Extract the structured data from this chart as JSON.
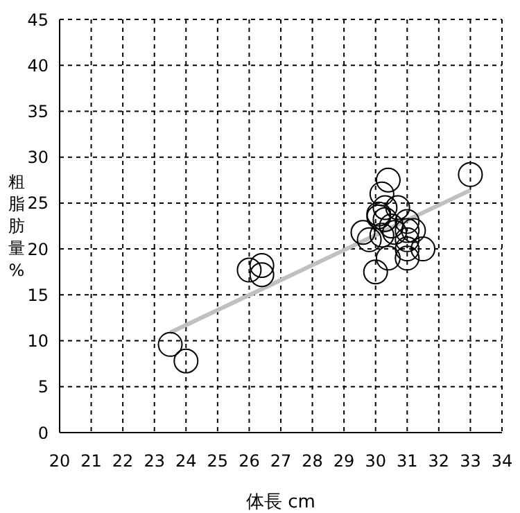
{
  "chart_data": {
    "type": "scatter",
    "xlabel": "体長 cm",
    "ylabel": "粗脂肪量%",
    "xlim": [
      20,
      34
    ],
    "xticks": [
      20,
      21,
      22,
      23,
      24,
      25,
      26,
      27,
      28,
      29,
      30,
      31,
      32,
      33,
      34
    ],
    "ylim": [
      0,
      45
    ],
    "yticks": [
      0,
      5,
      10,
      15,
      20,
      25,
      30,
      35,
      40,
      45
    ],
    "grid": true,
    "marker": "circle",
    "series": [
      {
        "color": "#000000",
        "x": [
          23.5,
          24,
          26,
          26.4,
          26.4,
          30,
          30.4,
          30.4,
          30.2,
          30.3,
          30.1,
          30.3,
          30.7,
          29.6,
          29.8,
          30.2,
          30.6,
          31,
          31,
          31.2,
          31.5,
          31,
          31,
          30.1,
          33,
          30.5,
          31
        ],
        "values": [
          9.6,
          7.8,
          17.7,
          18.2,
          17.2,
          17.5,
          19,
          27.5,
          26,
          24.5,
          23.5,
          23.2,
          24.5,
          21.8,
          21,
          21.5,
          21.8,
          23,
          22,
          22,
          20,
          20,
          19,
          23.8,
          28.1,
          22.5,
          21
        ]
      },
      {
        "type": "line",
        "color": "#c0c0c0",
        "marker": "none",
        "x": [
          23.5,
          33
        ],
        "values": [
          10.9,
          26.4
        ]
      }
    ]
  }
}
